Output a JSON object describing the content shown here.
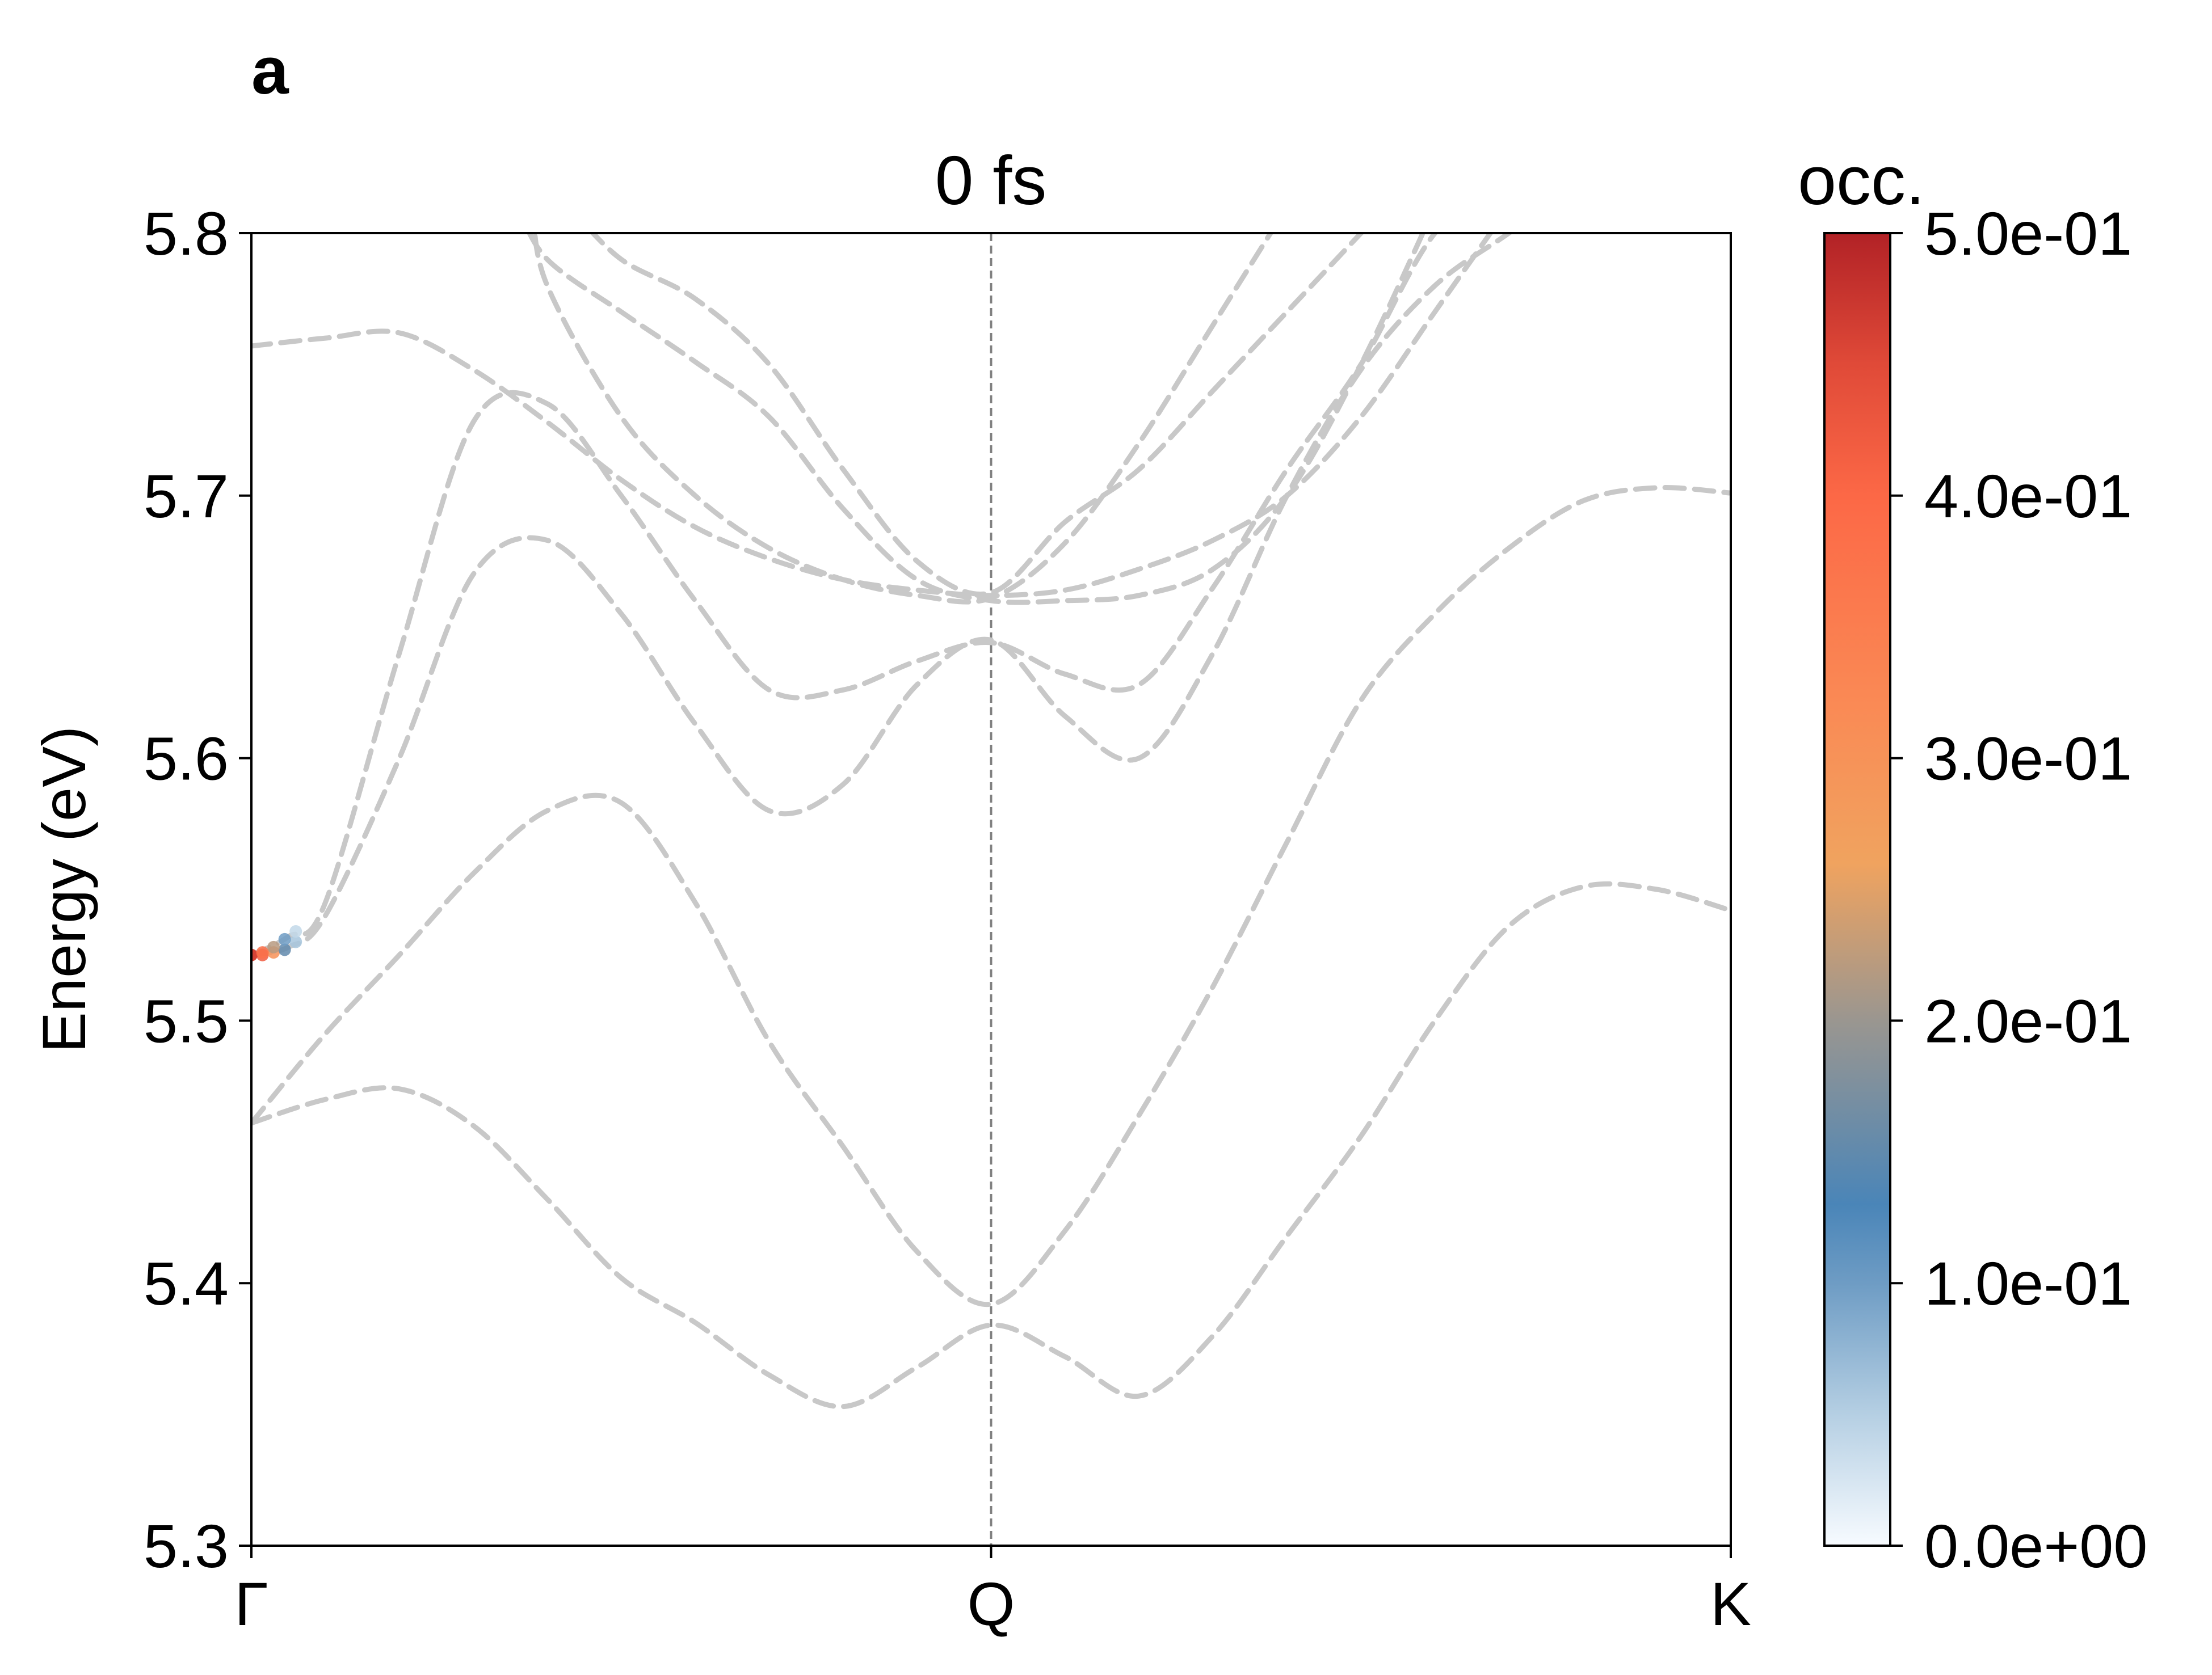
{
  "panel_label": "a",
  "chart_data": {
    "type": "line",
    "title": "0 fs",
    "xlabel": "",
    "ylabel": "Energy (eV)",
    "ylim": [
      5.3,
      5.8
    ],
    "yticks": [
      "5.3",
      "5.4",
      "5.5",
      "5.6",
      "5.7",
      "5.8"
    ],
    "xticks": [
      "Γ",
      "Q",
      "K"
    ],
    "x_range": [
      0,
      2
    ],
    "grid": false,
    "band_style": {
      "color": "#c8c8c8",
      "dash": "dashed"
    },
    "high_symmetry_lines": [
      {
        "x": 1,
        "color": "#808080",
        "dash": "dashed"
      }
    ],
    "bands": [
      {
        "x": [
          0,
          0.1,
          0.2,
          0.3,
          0.4,
          0.5,
          0.6,
          0.7,
          0.8,
          0.9,
          1.0,
          1.1,
          1.2,
          1.3,
          1.4,
          1.5,
          1.6,
          1.7,
          1.8,
          1.9,
          2.0
        ],
        "y": [
          5.461,
          5.47,
          5.474,
          5.46,
          5.432,
          5.402,
          5.385,
          5.365,
          5.353,
          5.368,
          5.384,
          5.372,
          5.357,
          5.38,
          5.418,
          5.456,
          5.5,
          5.536,
          5.551,
          5.55,
          5.542
        ]
      },
      {
        "x": [
          0,
          0.1,
          0.2,
          0.3,
          0.4,
          0.5,
          0.6,
          0.7,
          0.8,
          0.9,
          1.0,
          1.1,
          1.2,
          1.3,
          1.4,
          1.5,
          1.6,
          1.7,
          1.8,
          1.9,
          2.0
        ],
        "y": [
          5.461,
          5.495,
          5.525,
          5.556,
          5.58,
          5.583,
          5.545,
          5.492,
          5.452,
          5.412,
          5.392,
          5.42,
          5.464,
          5.513,
          5.568,
          5.622,
          5.655,
          5.68,
          5.698,
          5.703,
          5.701
        ]
      },
      {
        "x": [
          0,
          0.05,
          0.1,
          0.2,
          0.3,
          0.4,
          0.5,
          0.6,
          0.7,
          0.8,
          0.9,
          1.0,
          1.1,
          1.2,
          1.3,
          1.4,
          1.5,
          1.6,
          1.7,
          1.8
        ],
        "y": [
          5.525,
          5.528,
          5.54,
          5.6,
          5.67,
          5.683,
          5.655,
          5.613,
          5.58,
          5.59,
          5.628,
          5.645,
          5.616,
          5.6,
          5.64,
          5.7,
          5.748,
          5.78,
          5.8,
          5.82
        ]
      },
      {
        "x": [
          0,
          0.05,
          0.1,
          0.2,
          0.3,
          0.4,
          0.5,
          0.6,
          0.7,
          0.8,
          0.9,
          1.0,
          1.1,
          1.2,
          1.3,
          1.4,
          1.5,
          1.6,
          1.7
        ],
        "y": [
          5.525,
          5.532,
          5.545,
          5.64,
          5.728,
          5.735,
          5.7,
          5.66,
          5.626,
          5.626,
          5.637,
          5.644,
          5.632,
          5.628,
          5.665,
          5.71,
          5.75,
          5.8,
          5.82
        ]
      },
      {
        "x": [
          0,
          0.1,
          0.2,
          0.3,
          0.4,
          0.5,
          0.6,
          0.7,
          0.8,
          0.9,
          1.0,
          1.1,
          1.2,
          1.3,
          1.4,
          1.5,
          1.6,
          1.7
        ],
        "y": [
          5.757,
          5.76,
          5.762,
          5.748,
          5.728,
          5.706,
          5.688,
          5.676,
          5.668,
          5.664,
          5.662,
          5.664,
          5.672,
          5.683,
          5.7,
          5.73,
          5.77,
          5.81
        ]
      },
      {
        "x": [
          0.36,
          0.4,
          0.5,
          0.6,
          0.7,
          0.8,
          0.9,
          1.0,
          1.1,
          1.2,
          1.3,
          1.4,
          1.5,
          1.6
        ],
        "y": [
          5.81,
          5.79,
          5.77,
          5.751,
          5.73,
          5.695,
          5.668,
          5.66,
          5.66,
          5.662,
          5.672,
          5.7,
          5.75,
          5.81
        ]
      },
      {
        "x": [
          0.38,
          0.4,
          0.5,
          0.6,
          0.7,
          0.8,
          0.9,
          1.0,
          1.1,
          1.2,
          1.3,
          1.4
        ],
        "y": [
          5.81,
          5.78,
          5.73,
          5.7,
          5.68,
          5.668,
          5.662,
          5.661,
          5.682,
          5.72,
          5.765,
          5.81
        ]
      },
      {
        "x": [
          0.43,
          0.5,
          0.6,
          0.7,
          0.8,
          0.9,
          1.0,
          1.1,
          1.2,
          1.3,
          1.4,
          1.5,
          1.55
        ],
        "y": [
          5.81,
          5.79,
          5.775,
          5.75,
          5.71,
          5.675,
          5.663,
          5.69,
          5.71,
          5.74,
          5.77,
          5.8,
          5.815
        ]
      }
    ],
    "occupation_points": [
      {
        "band": 2,
        "x": 0.0,
        "y": 5.525,
        "occ": 0.48
      },
      {
        "band": 2,
        "x": 0.015,
        "y": 5.525,
        "occ": 0.42
      },
      {
        "band": 2,
        "x": 0.03,
        "y": 5.526,
        "occ": 0.3
      },
      {
        "band": 2,
        "x": 0.045,
        "y": 5.527,
        "occ": 0.15
      },
      {
        "band": 2,
        "x": 0.06,
        "y": 5.53,
        "occ": 0.06
      },
      {
        "band": 3,
        "x": 0.0,
        "y": 5.525,
        "occ": 0.46
      },
      {
        "band": 3,
        "x": 0.015,
        "y": 5.526,
        "occ": 0.38
      },
      {
        "band": 3,
        "x": 0.03,
        "y": 5.528,
        "occ": 0.22
      },
      {
        "band": 3,
        "x": 0.045,
        "y": 5.531,
        "occ": 0.1
      },
      {
        "band": 3,
        "x": 0.06,
        "y": 5.534,
        "occ": 0.04
      }
    ],
    "colorbar": {
      "label": "occ.",
      "range": [
        0,
        0.5
      ],
      "ticks": [
        {
          "value": 0.0,
          "label": "0.0e+00"
        },
        {
          "value": 0.1,
          "label": "1.0e-01"
        },
        {
          "value": 0.2,
          "label": "2.0e-01"
        },
        {
          "value": 0.3,
          "label": "3.0e-01"
        },
        {
          "value": 0.4,
          "label": "4.0e-01"
        },
        {
          "value": 0.5,
          "label": "5.0e-01"
        }
      ],
      "color_stops": [
        {
          "value": 0.0,
          "color": "#f7fbff"
        },
        {
          "value": 0.05,
          "color": "#b5cfe3"
        },
        {
          "value": 0.1,
          "color": "#6e9cc4"
        },
        {
          "value": 0.13,
          "color": "#4a85b8"
        },
        {
          "value": 0.2,
          "color": "#9a9690"
        },
        {
          "value": 0.26,
          "color": "#f0a35f"
        },
        {
          "value": 0.32,
          "color": "#fa8a55"
        },
        {
          "value": 0.4,
          "color": "#fc6846"
        },
        {
          "value": 0.45,
          "color": "#e04a38"
        },
        {
          "value": 0.5,
          "color": "#b22226"
        }
      ]
    }
  }
}
